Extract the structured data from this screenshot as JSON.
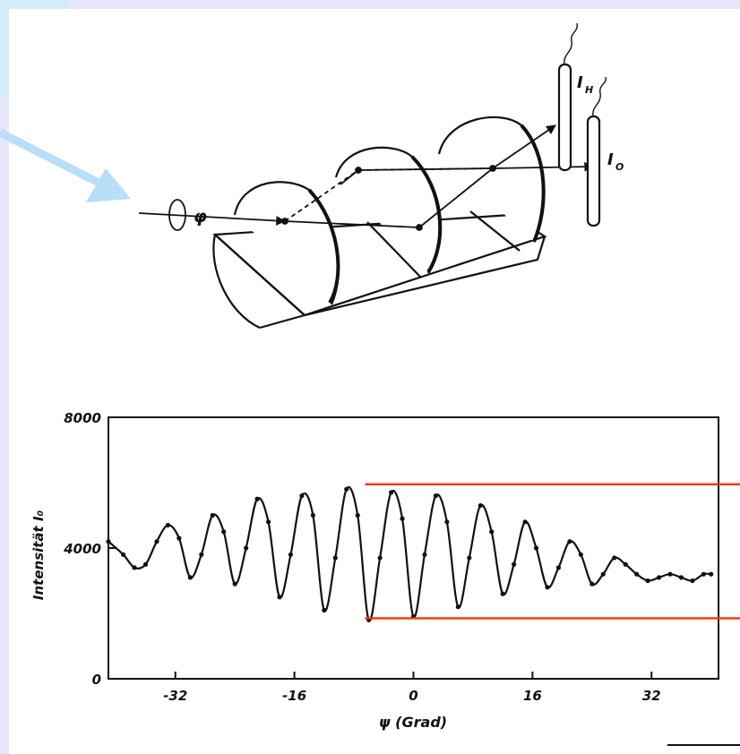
{
  "diagram": {
    "rotation_label": "φ",
    "detector_h_label": "I",
    "detector_h_sub": "H",
    "detector_o_label": "I",
    "detector_o_sub": "O"
  },
  "colors": {
    "background": "#e6e6fa",
    "accent_block": "#d4ecfa",
    "arrow": "#b8def8",
    "reference_lines": "#ff3300",
    "ink": "#111111"
  },
  "chart_data": {
    "type": "line",
    "title": "",
    "xlabel": "ψ (Grad)",
    "ylabel": "Intensität I₀",
    "xlim": [
      -41,
      41
    ],
    "ylim": [
      0,
      8000
    ],
    "xticks": [
      -32,
      -16,
      0,
      16,
      32
    ],
    "xtick_labels": [
      "-32",
      "-16",
      "0",
      "16",
      "32"
    ],
    "yticks": [
      0,
      4000,
      8000
    ],
    "ytick_labels": [
      "0",
      "4000",
      "8000"
    ],
    "grid": false,
    "legend": "none",
    "series": [
      {
        "x": [
          -41,
          -39,
          -37.5,
          -36,
          -34.5,
          -33,
          -31.5,
          -30,
          -28.5,
          -27,
          -25.5,
          -24,
          -22.5,
          -21,
          -19.5,
          -18,
          -16.5,
          -15,
          -13.5,
          -12,
          -10.5,
          -9,
          -7.5,
          -6,
          -4.5,
          -3,
          -1.5,
          0,
          1.5,
          3,
          4.5,
          6,
          7.5,
          9,
          10.5,
          12,
          13.5,
          15,
          16.5,
          18,
          19.5,
          21,
          22.5,
          24,
          25.5,
          27,
          28.5,
          30,
          31.5,
          33,
          34.5,
          36,
          37.5,
          39,
          40
        ],
        "y": [
          4200,
          3800,
          3400,
          3500,
          4200,
          4700,
          4300,
          3100,
          3800,
          5000,
          4500,
          2900,
          4000,
          5500,
          4800,
          2500,
          3800,
          5600,
          5000,
          2100,
          3700,
          5800,
          5000,
          1800,
          3700,
          5700,
          4900,
          1900,
          3800,
          5600,
          4800,
          2200,
          3700,
          5300,
          4500,
          2600,
          3500,
          4800,
          4000,
          2800,
          3400,
          4200,
          3800,
          2900,
          3200,
          3700,
          3500,
          3200,
          3000,
          3100,
          3200,
          3100,
          3000,
          3200,
          3200
        ]
      }
    ],
    "reference_lines": [
      {
        "y": 5950,
        "x_start": -6.5
      },
      {
        "y": 1850,
        "x_start": -6.5
      }
    ]
  }
}
